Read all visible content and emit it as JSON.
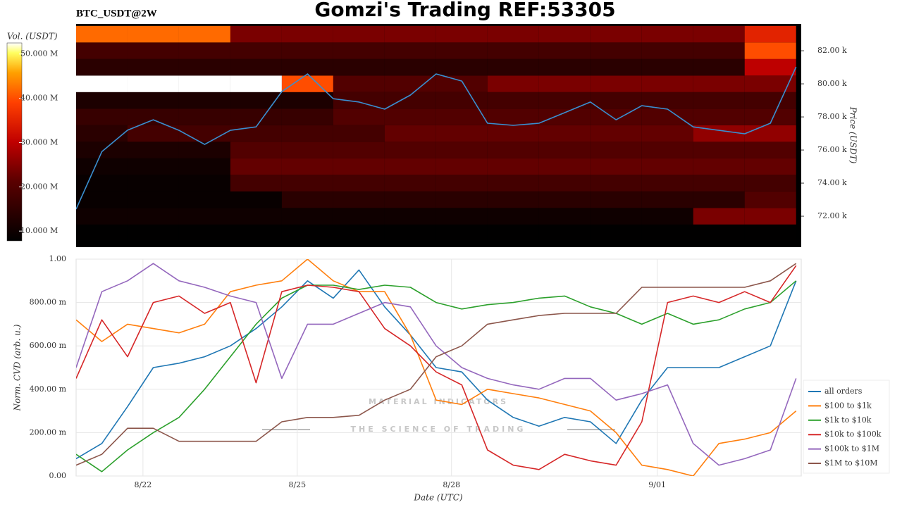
{
  "chart_data": [
    {
      "type": "heatmap",
      "title": "Gomzi's Trading REF:53305",
      "subtitle": "BTC_USDT@2W",
      "y_label": "Price (USDT)",
      "colorbar_label": "Vol. (USDT)",
      "xlim": [
        20.7,
        34.8
      ],
      "ylim": [
        70130,
        83620
      ],
      "yticks": [
        {
          "value": 72000,
          "label": "72.00 k"
        },
        {
          "value": 74000,
          "label": "74.00 k"
        },
        {
          "value": 76000,
          "label": "76.00 k"
        },
        {
          "value": 78000,
          "label": "78.00 k"
        },
        {
          "value": 80000,
          "label": "80.00 k"
        },
        {
          "value": 82000,
          "label": "82.00 k"
        }
      ],
      "x_bins": [
        20.7,
        21.7,
        22.7,
        23.7,
        24.7,
        25.7,
        26.7,
        27.7,
        28.7,
        29.7,
        30.7,
        31.7,
        32.7,
        33.7,
        34.7
      ],
      "y_bins": [
        70500,
        71500,
        72500,
        73500,
        74500,
        75500,
        76500,
        77500,
        78500,
        79500,
        80500,
        81500,
        82500,
        83500
      ],
      "z": [
        [
          8000000,
          8000000,
          8000000,
          8000000,
          8000000,
          8000000,
          8000000,
          8000000,
          8000000,
          8000000,
          8000000,
          8000000,
          8000000,
          8000000
        ],
        [
          10000000,
          10000000,
          10000000,
          10000000,
          10000000,
          10000000,
          10000000,
          10000000,
          10000000,
          10000000,
          10000000,
          10000000,
          24000000,
          24000000
        ],
        [
          9000000,
          9000000,
          9000000,
          9000000,
          14000000,
          14000000,
          14000000,
          14000000,
          14000000,
          14000000,
          14000000,
          14000000,
          14000000,
          20000000
        ],
        [
          9000000,
          9000000,
          9000000,
          18000000,
          18000000,
          18000000,
          18000000,
          18000000,
          18000000,
          18000000,
          18000000,
          18000000,
          18000000,
          18000000
        ],
        [
          10000000,
          10000000,
          10000000,
          22000000,
          22000000,
          22000000,
          22000000,
          22000000,
          22000000,
          22000000,
          22000000,
          22000000,
          22000000,
          22000000
        ],
        [
          12000000,
          12000000,
          12000000,
          20000000,
          20000000,
          20000000,
          20000000,
          20000000,
          20000000,
          20000000,
          20000000,
          20000000,
          20000000,
          20000000
        ],
        [
          14000000,
          18000000,
          18000000,
          18000000,
          18000000,
          18000000,
          22000000,
          22000000,
          22000000,
          22000000,
          22000000,
          22000000,
          26000000,
          26000000
        ],
        [
          16000000,
          16000000,
          16000000,
          16000000,
          16000000,
          20000000,
          20000000,
          20000000,
          20000000,
          20000000,
          20000000,
          20000000,
          20000000,
          20000000
        ],
        [
          12000000,
          12000000,
          12000000,
          12000000,
          12000000,
          18000000,
          18000000,
          18000000,
          18000000,
          18000000,
          18000000,
          18000000,
          18000000,
          18000000
        ],
        [
          55000000,
          55000000,
          55000000,
          55000000,
          40000000,
          20000000,
          20000000,
          20000000,
          24000000,
          24000000,
          24000000,
          24000000,
          24000000,
          24000000
        ],
        [
          14000000,
          14000000,
          14000000,
          14000000,
          14000000,
          14000000,
          14000000,
          14000000,
          14000000,
          14000000,
          14000000,
          14000000,
          14000000,
          30000000
        ],
        [
          18000000,
          18000000,
          18000000,
          18000000,
          18000000,
          18000000,
          18000000,
          18000000,
          18000000,
          18000000,
          18000000,
          18000000,
          18000000,
          40000000
        ],
        [
          42000000,
          42000000,
          42000000,
          24000000,
          24000000,
          24000000,
          24000000,
          24000000,
          24000000,
          24000000,
          24000000,
          24000000,
          24000000,
          35000000
        ]
      ],
      "zlim": [
        7800000,
        52500000
      ],
      "zticks": [
        {
          "value": 10000000,
          "label": "10.000 M"
        },
        {
          "value": 20000000,
          "label": "20.000 M"
        },
        {
          "value": 30000000,
          "label": "30.000 M"
        },
        {
          "value": 40000000,
          "label": "40.000 M"
        },
        {
          "value": 50000000,
          "label": "50.000 M"
        }
      ],
      "x": [
        20.7,
        21.2,
        21.7,
        22.2,
        22.7,
        23.2,
        23.7,
        24.2,
        24.7,
        25.2,
        25.7,
        26.2,
        26.7,
        27.2,
        27.7,
        28.2,
        28.7,
        29.2,
        29.7,
        30.2,
        30.7,
        31.2,
        31.7,
        32.2,
        32.7,
        33.2,
        33.7,
        34.2,
        34.7
      ],
      "series": [
        {
          "color": "#3a8fd0",
          "values": [
            72430,
            75900,
            77200,
            77830,
            77190,
            76340,
            77190,
            77400,
            79530,
            80600,
            79100,
            78900,
            78470,
            79320,
            80600,
            80170,
            77620,
            77490,
            77620,
            78260,
            78900,
            77830,
            78680,
            78470,
            77400,
            77190,
            76980,
            77620,
            81020
          ]
        }
      ]
    },
    {
      "type": "line",
      "x_label": "Date (UTC)",
      "y_label": "Norm. CVD (arb. u.)",
      "xlim": [
        20.7,
        34.8
      ],
      "ylim": [
        0,
        1
      ],
      "grid": true,
      "legend": "right",
      "xticks": [
        {
          "value": 22,
          "label": "8/22"
        },
        {
          "value": 25,
          "label": "8/25"
        },
        {
          "value": 28,
          "label": "8/28"
        },
        {
          "value": 32,
          "label": "9/01"
        }
      ],
      "yticks": [
        {
          "value": 0,
          "label": "0.00"
        },
        {
          "value": 0.2,
          "label": "200.00 m"
        },
        {
          "value": 0.4,
          "label": "400.00 m"
        },
        {
          "value": 0.6,
          "label": "600.00 m"
        },
        {
          "value": 0.8,
          "label": "800.00 m"
        },
        {
          "value": 1,
          "label": "1.00"
        }
      ],
      "annotations": [
        "MATERIAL INDICATORS",
        "THE SCIENCE OF TRADING"
      ],
      "x": [
        20.7,
        21.2,
        21.7,
        22.2,
        22.7,
        23.2,
        23.7,
        24.2,
        24.7,
        25.2,
        25.7,
        26.2,
        26.7,
        27.2,
        27.7,
        28.2,
        28.7,
        29.2,
        29.7,
        30.2,
        30.7,
        31.2,
        31.7,
        32.2,
        32.7,
        33.2,
        33.7,
        34.2,
        34.7
      ],
      "series": [
        {
          "name": "all orders",
          "color": "#1f77b4",
          "values": [
            0.08,
            0.15,
            0.32,
            0.5,
            0.52,
            0.55,
            0.6,
            0.68,
            0.78,
            0.9,
            0.82,
            0.95,
            0.78,
            0.65,
            0.5,
            0.48,
            0.35,
            0.27,
            0.23,
            0.27,
            0.25,
            0.15,
            0.35,
            0.5,
            0.5,
            0.5,
            0.55,
            0.6,
            0.9
          ]
        },
        {
          "name": "$100 to $1k",
          "color": "#ff7f0e",
          "values": [
            0.72,
            0.62,
            0.7,
            0.68,
            0.66,
            0.7,
            0.85,
            0.88,
            0.9,
            1.0,
            0.9,
            0.85,
            0.85,
            0.65,
            0.35,
            0.33,
            0.4,
            0.38,
            0.36,
            0.33,
            0.3,
            0.2,
            0.05,
            0.03,
            0.0,
            0.15,
            0.17,
            0.2,
            0.3
          ]
        },
        {
          "name": "$1k to $10k",
          "color": "#2ca02c",
          "values": [
            0.1,
            0.02,
            0.12,
            0.2,
            0.27,
            0.4,
            0.55,
            0.7,
            0.82,
            0.88,
            0.88,
            0.86,
            0.88,
            0.87,
            0.8,
            0.77,
            0.79,
            0.8,
            0.82,
            0.83,
            0.78,
            0.75,
            0.7,
            0.75,
            0.7,
            0.72,
            0.77,
            0.8,
            0.9
          ]
        },
        {
          "name": "$10k to $100k",
          "color": "#d62728",
          "values": [
            0.45,
            0.72,
            0.55,
            0.8,
            0.83,
            0.75,
            0.8,
            0.43,
            0.85,
            0.88,
            0.87,
            0.85,
            0.68,
            0.6,
            0.48,
            0.42,
            0.12,
            0.05,
            0.03,
            0.1,
            0.07,
            0.05,
            0.25,
            0.8,
            0.83,
            0.8,
            0.85,
            0.8,
            0.97
          ]
        },
        {
          "name": "$100k to $1M",
          "color": "#9467bd",
          "values": [
            0.5,
            0.85,
            0.9,
            0.98,
            0.9,
            0.87,
            0.83,
            0.8,
            0.45,
            0.7,
            0.7,
            0.75,
            0.8,
            0.78,
            0.6,
            0.5,
            0.45,
            0.42,
            0.4,
            0.45,
            0.45,
            0.35,
            0.38,
            0.42,
            0.15,
            0.05,
            0.08,
            0.12,
            0.45
          ]
        },
        {
          "name": "$1M to $10M",
          "color": "#8c564b",
          "values": [
            0.05,
            0.1,
            0.22,
            0.22,
            0.16,
            0.16,
            0.16,
            0.16,
            0.25,
            0.27,
            0.27,
            0.28,
            0.35,
            0.4,
            0.55,
            0.6,
            0.7,
            0.72,
            0.74,
            0.75,
            0.75,
            0.75,
            0.87,
            0.87,
            0.87,
            0.87,
            0.87,
            0.9,
            0.98
          ]
        }
      ]
    }
  ]
}
